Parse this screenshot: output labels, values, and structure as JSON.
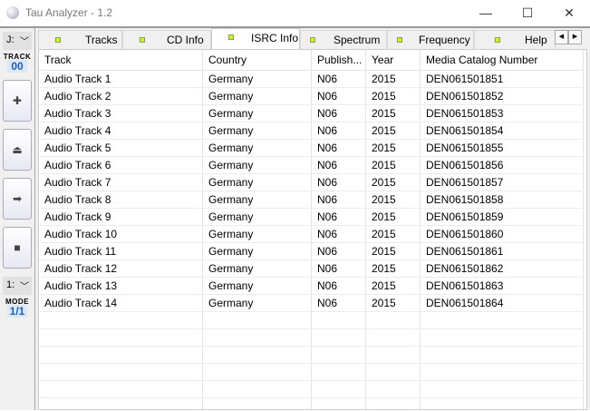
{
  "window": {
    "title": "Tau Analyzer - 1.2",
    "minimize": "—",
    "maximize": "☐",
    "close": "✕"
  },
  "left_panel": {
    "drive": "J:",
    "track_label": "TRACK",
    "track_value": "00",
    "mode_select": "1:",
    "mode_label": "MODE",
    "mode_value": "1/1",
    "buttons": [
      {
        "name": "add",
        "glyph": "✚"
      },
      {
        "name": "eject",
        "glyph": "⏏"
      },
      {
        "name": "next",
        "glyph": "➡"
      },
      {
        "name": "stop",
        "glyph": "■"
      }
    ]
  },
  "tabs": [
    {
      "label": "Tracks"
    },
    {
      "label": "CD Info"
    },
    {
      "label": "ISRC Info",
      "active": true
    },
    {
      "label": "Spectrum"
    },
    {
      "label": "Frequency"
    },
    {
      "label": "Help"
    }
  ],
  "tab_scroll": {
    "left": "◀",
    "right": "▶"
  },
  "table": {
    "columns": [
      "Track",
      "Country",
      "Publish...",
      "Year",
      "Media Catalog Number"
    ],
    "rows": [
      [
        "Audio Track 1",
        "Germany",
        "N06",
        "2015",
        "DEN061501851"
      ],
      [
        "Audio Track 2",
        "Germany",
        "N06",
        "2015",
        "DEN061501852"
      ],
      [
        "Audio Track 3",
        "Germany",
        "N06",
        "2015",
        "DEN061501853"
      ],
      [
        "Audio Track 4",
        "Germany",
        "N06",
        "2015",
        "DEN061501854"
      ],
      [
        "Audio Track 5",
        "Germany",
        "N06",
        "2015",
        "DEN061501855"
      ],
      [
        "Audio Track 6",
        "Germany",
        "N06",
        "2015",
        "DEN061501856"
      ],
      [
        "Audio Track 7",
        "Germany",
        "N06",
        "2015",
        "DEN061501857"
      ],
      [
        "Audio Track 8",
        "Germany",
        "N06",
        "2015",
        "DEN061501858"
      ],
      [
        "Audio Track 9",
        "Germany",
        "N06",
        "2015",
        "DEN061501859"
      ],
      [
        "Audio Track 10",
        "Germany",
        "N06",
        "2015",
        "DEN061501860"
      ],
      [
        "Audio Track 11",
        "Germany",
        "N06",
        "2015",
        "DEN061501861"
      ],
      [
        "Audio Track 12",
        "Germany",
        "N06",
        "2015",
        "DEN061501862"
      ],
      [
        "Audio Track 13",
        "Germany",
        "N06",
        "2015",
        "DEN061501863"
      ],
      [
        "Audio Track 14",
        "Germany",
        "N06",
        "2015",
        "DEN061501864"
      ]
    ]
  },
  "colors": {
    "accent_value": "#1a5fc8",
    "tab_indicator": "#eeee00"
  }
}
